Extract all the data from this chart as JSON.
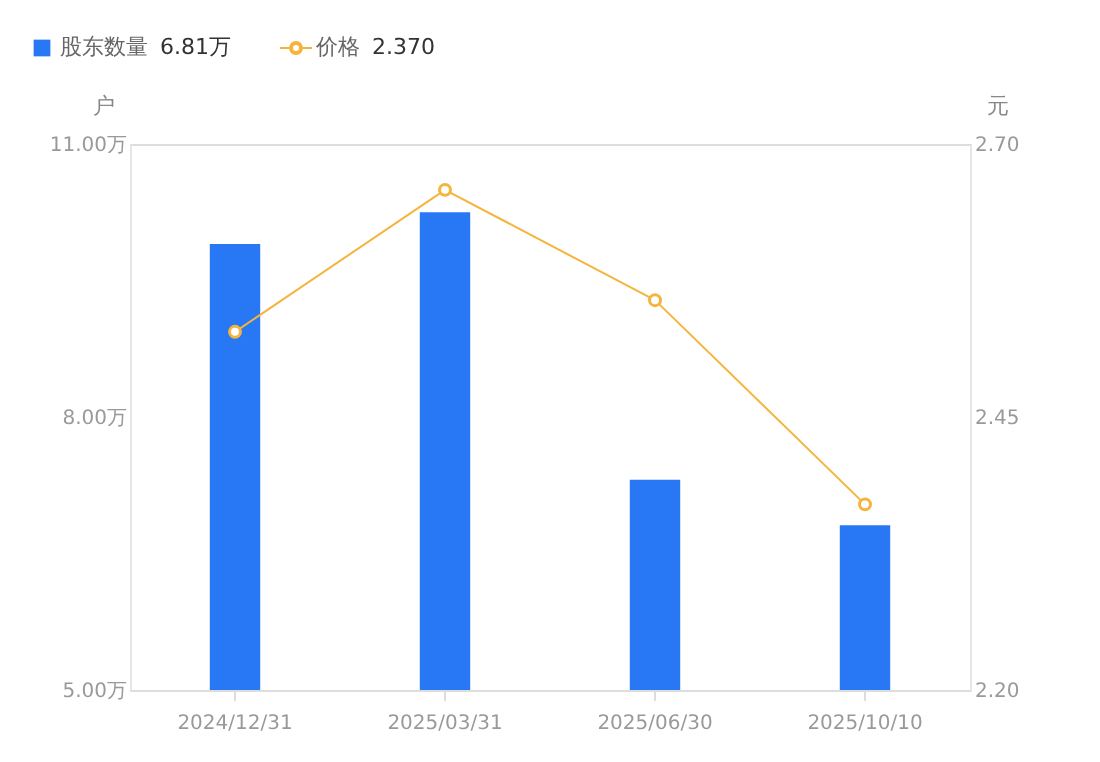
{
  "chart_data": {
    "type": "bar",
    "categories": [
      "2024/12/31",
      "2025/03/31",
      "2025/06/30",
      "2025/10/10"
    ],
    "series": [
      {
        "name": "股东数量",
        "color": "#2878f5",
        "values": [
          9.9,
          10.25,
          7.31,
          6.81
        ]
      },
      {
        "name": "价格",
        "type": "line",
        "axis": "y2",
        "color": "#f5b43c",
        "values": [
          2.528,
          2.658,
          2.557,
          2.37
        ],
        "marker": "circle"
      }
    ],
    "annotations": [
      "6.81万",
      "2.370"
    ],
    "ylabel": "户",
    "y2label": "元",
    "ylim": [
      5,
      11
    ],
    "yticks": [
      {
        "value": 5,
        "label": "5.00万"
      },
      {
        "value": 8,
        "label": "8.00万"
      },
      {
        "value": 11,
        "label": "11.00万"
      }
    ],
    "y2lim": [
      2.2,
      2.7
    ],
    "y2ticks": [
      {
        "value": 2.2,
        "label": "2.20"
      },
      {
        "value": 2.45,
        "label": "2.45"
      },
      {
        "value": 2.7,
        "label": "2.70"
      }
    ],
    "grid": false,
    "legend": "top left"
  }
}
